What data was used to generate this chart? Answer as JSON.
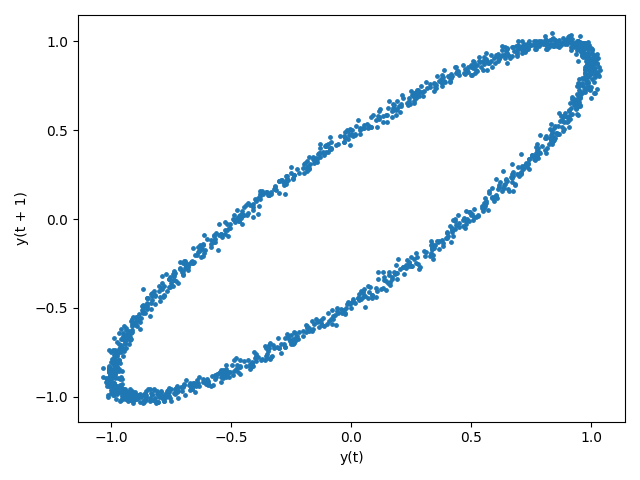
{
  "xlabel": "y(t)",
  "ylabel": "y(t + 1)",
  "dot_color": "#1f77b4",
  "dot_size": 6,
  "n_points": 1500,
  "noise_std": 0.02,
  "phase_shift": 0.5,
  "background_color": "#ffffff"
}
